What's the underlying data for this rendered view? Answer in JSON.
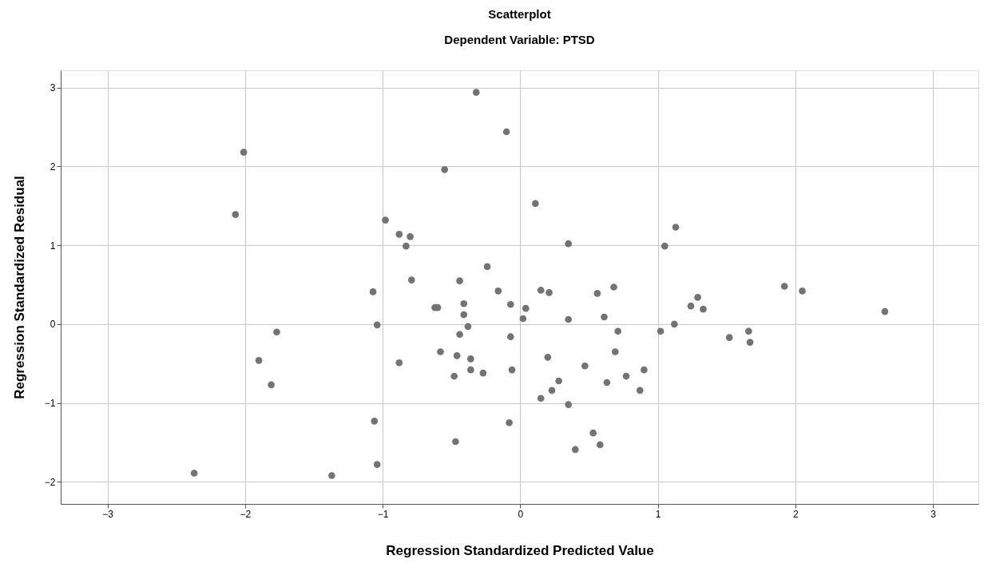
{
  "chart_data": {
    "type": "scatter",
    "title": "Scatterplot",
    "subtitle": "Dependent Variable: PTSD",
    "xlabel": "Regression Standardized Predicted Value",
    "ylabel": "Regression Standardized Residual",
    "xlim": [
      -3.34,
      3.33
    ],
    "ylim": [
      -2.28,
      3.22
    ],
    "xticks": [
      -3,
      -2,
      -1,
      0,
      1,
      2,
      3
    ],
    "yticks": [
      -2,
      -1,
      0,
      1,
      2,
      3
    ],
    "grid": true,
    "series": [
      {
        "color": "#737373",
        "x": [
          -2.01,
          -2.07,
          -0.98,
          -1.07,
          -1.04,
          -1.77,
          -1.9,
          -1.81,
          -1.06,
          -1.04,
          -2.37,
          -1.37,
          -0.32,
          -0.1,
          -0.55,
          0.11,
          -0.88,
          -0.8,
          -0.83,
          0.35,
          1.05,
          -0.24,
          -0.79,
          -0.44,
          -0.16,
          0.15,
          0.21,
          0.56,
          0.68,
          -0.41,
          -0.07,
          0.04,
          -0.62,
          -0.6,
          -0.41,
          0.02,
          0.35,
          0.61,
          -0.38,
          -0.44,
          -0.07,
          0.71,
          1.02,
          -0.58,
          -0.46,
          -0.36,
          -0.88,
          -0.36,
          -0.27,
          -0.48,
          -0.06,
          0.2,
          0.47,
          0.69,
          0.9,
          0.77,
          0.63,
          0.28,
          0.23,
          0.15,
          0.87,
          0.35,
          -0.08,
          -0.47,
          0.53,
          0.58,
          0.4,
          1.13,
          1.29,
          1.24,
          1.33,
          1.12,
          1.52,
          1.66,
          1.67,
          1.92,
          2.05,
          2.65
        ],
        "values": [
          2.18,
          1.39,
          1.32,
          0.41,
          -0.01,
          -0.1,
          -0.46,
          -0.77,
          -1.23,
          -1.78,
          -1.89,
          -1.92,
          2.94,
          2.44,
          1.96,
          1.53,
          1.14,
          1.11,
          0.99,
          1.02,
          0.99,
          0.73,
          0.56,
          0.55,
          0.42,
          0.43,
          0.4,
          0.39,
          0.47,
          0.26,
          0.25,
          0.2,
          0.21,
          0.21,
          0.12,
          0.07,
          0.06,
          0.09,
          -0.03,
          -0.13,
          -0.16,
          -0.09,
          -0.09,
          -0.35,
          -0.4,
          -0.44,
          -0.49,
          -0.58,
          -0.62,
          -0.66,
          -0.58,
          -0.42,
          -0.53,
          -0.35,
          -0.58,
          -0.66,
          -0.74,
          -0.72,
          -0.84,
          -0.94,
          -0.84,
          -1.02,
          -1.25,
          -1.49,
          -1.38,
          -1.53,
          -1.59,
          1.23,
          0.34,
          0.23,
          0.19,
          0.0,
          -0.17,
          -0.09,
          -0.23,
          0.48,
          0.42,
          0.16
        ]
      }
    ]
  }
}
